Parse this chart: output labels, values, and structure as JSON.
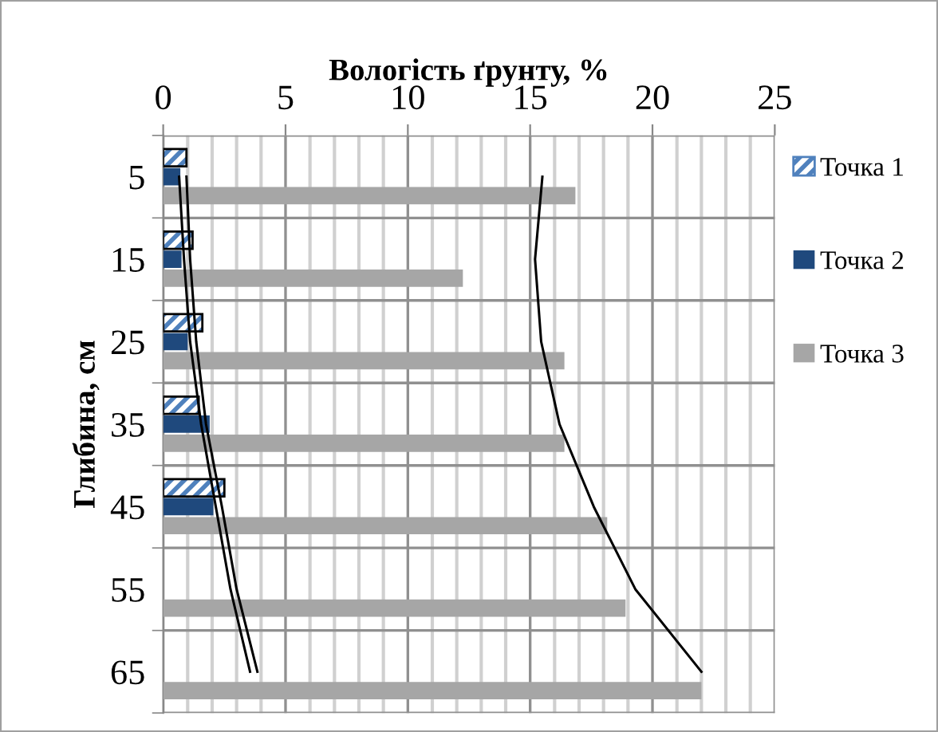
{
  "chart_data": {
    "type": "bar",
    "orientation": "horizontal",
    "xlabel": "Вологість ґрунту, %",
    "ylabel": "Глибина, см",
    "categories": [
      "5",
      "15",
      "25",
      "35",
      "45",
      "55",
      "65"
    ],
    "xlim": [
      0,
      25
    ],
    "xticks": [
      0,
      5,
      10,
      15,
      20,
      25
    ],
    "grid": true,
    "legend": "right",
    "series": [
      {
        "name": "Точка 1",
        "color": "#4f81bd",
        "values": [
          0.95,
          1.2,
          1.6,
          1.45,
          2.5,
          null,
          null
        ]
      },
      {
        "name": "Точка 2",
        "color": "#1f497d",
        "values": [
          0.7,
          0.75,
          1.0,
          1.9,
          2.05,
          null,
          null
        ]
      },
      {
        "name": "Точка 3",
        "color": "#a6a6a6",
        "values": [
          16.85,
          12.25,
          16.4,
          16.4,
          18.15,
          18.9,
          22.0
        ]
      },
      {
        "type": "line",
        "color": "#000000",
        "values": [
          0.95,
          1.1,
          1.35,
          1.75,
          2.4,
          3.0,
          3.85
        ]
      },
      {
        "type": "line",
        "color": "#000000",
        "values": [
          0.65,
          0.85,
          1.1,
          1.55,
          2.15,
          2.75,
          3.55
        ]
      },
      {
        "type": "line",
        "color": "#000000",
        "values": [
          15.5,
          15.2,
          15.45,
          16.2,
          17.6,
          19.3,
          22.0
        ]
      }
    ]
  }
}
